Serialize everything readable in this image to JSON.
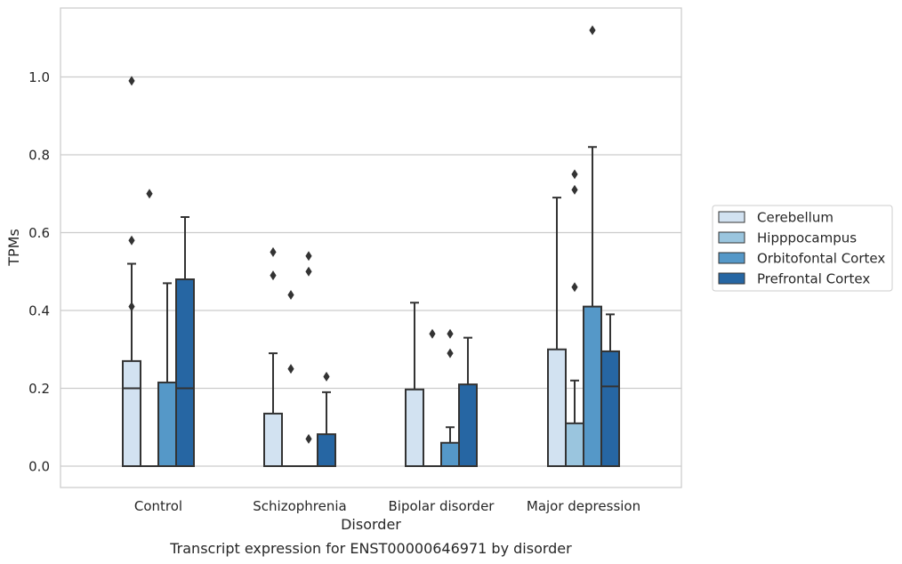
{
  "chart_data": {
    "type": "boxplot",
    "caption": "Transcript expression for ENST00000646971 by disorder",
    "xlabel": "Disorder",
    "ylabel": "TPMs",
    "ylim": [
      -0.055,
      1.175
    ],
    "yticks": [
      0.0,
      0.2,
      0.4,
      0.6,
      0.8,
      1.0
    ],
    "ytick_labels": [
      "0.0",
      "0.2",
      "0.4",
      "0.6",
      "0.8",
      "1.0"
    ],
    "grid": "horizontal",
    "legend_position": "right-outside",
    "categories": [
      "Control",
      "Schizophrenia",
      "Bipolar disorder",
      "Major depression"
    ],
    "series": [
      {
        "name": "Cerebellum",
        "color": "#d2e2f1",
        "boxes": [
          {
            "q1": 0.0,
            "median": 0.2,
            "q3": 0.27,
            "whisker_low": 0.0,
            "whisker_high": 0.52,
            "outliers": [
              0.99,
              0.58,
              0.41
            ]
          },
          {
            "q1": 0.0,
            "median": 0.0,
            "q3": 0.135,
            "whisker_low": 0.0,
            "whisker_high": 0.29,
            "outliers": [
              0.55,
              0.49
            ]
          },
          {
            "q1": 0.0,
            "median": 0.0,
            "q3": 0.197,
            "whisker_low": 0.0,
            "whisker_high": 0.42,
            "outliers": []
          },
          {
            "q1": 0.0,
            "median": 0.0,
            "q3": 0.3,
            "whisker_low": 0.0,
            "whisker_high": 0.69,
            "outliers": []
          }
        ]
      },
      {
        "name": "Hipppocampus",
        "color": "#9ac5de",
        "boxes": [
          {
            "q1": 0.0,
            "median": 0.0,
            "q3": 0.0,
            "whisker_low": 0.0,
            "whisker_high": 0.0,
            "outliers": [
              0.7
            ]
          },
          {
            "q1": 0.0,
            "median": 0.0,
            "q3": 0.0,
            "whisker_low": 0.0,
            "whisker_high": 0.0,
            "outliers": [
              0.44,
              0.25
            ]
          },
          {
            "q1": 0.0,
            "median": 0.0,
            "q3": 0.0,
            "whisker_low": 0.0,
            "whisker_high": 0.0,
            "outliers": [
              0.34
            ]
          },
          {
            "q1": 0.0,
            "median": 0.0,
            "q3": 0.11,
            "whisker_low": 0.0,
            "whisker_high": 0.22,
            "outliers": [
              0.75,
              0.71,
              0.46
            ]
          }
        ]
      },
      {
        "name": "Orbitofontal Cortex",
        "color": "#5598c8",
        "boxes": [
          {
            "q1": 0.0,
            "median": 0.0,
            "q3": 0.215,
            "whisker_low": 0.0,
            "whisker_high": 0.47,
            "outliers": []
          },
          {
            "q1": 0.0,
            "median": 0.0,
            "q3": 0.0,
            "whisker_low": 0.0,
            "whisker_high": 0.0,
            "outliers": [
              0.54,
              0.5,
              0.07
            ]
          },
          {
            "q1": 0.0,
            "median": 0.0,
            "q3": 0.06,
            "whisker_low": 0.0,
            "whisker_high": 0.1,
            "outliers": [
              0.34,
              0.29
            ]
          },
          {
            "q1": 0.0,
            "median": 0.0,
            "q3": 0.41,
            "whisker_low": 0.0,
            "whisker_high": 0.82,
            "outliers": [
              1.12
            ]
          }
        ]
      },
      {
        "name": "Prefrontal Cortex",
        "color": "#2666a3",
        "boxes": [
          {
            "q1": 0.0,
            "median": 0.2,
            "q3": 0.48,
            "whisker_low": 0.0,
            "whisker_high": 0.64,
            "outliers": []
          },
          {
            "q1": 0.0,
            "median": 0.0,
            "q3": 0.082,
            "whisker_low": 0.0,
            "whisker_high": 0.19,
            "outliers": [
              0.23
            ]
          },
          {
            "q1": 0.0,
            "median": 0.0,
            "q3": 0.21,
            "whisker_low": 0.0,
            "whisker_high": 0.33,
            "outliers": []
          },
          {
            "q1": 0.0,
            "median": 0.205,
            "q3": 0.295,
            "whisker_low": 0.0,
            "whisker_high": 0.39,
            "outliers": []
          }
        ]
      }
    ]
  }
}
